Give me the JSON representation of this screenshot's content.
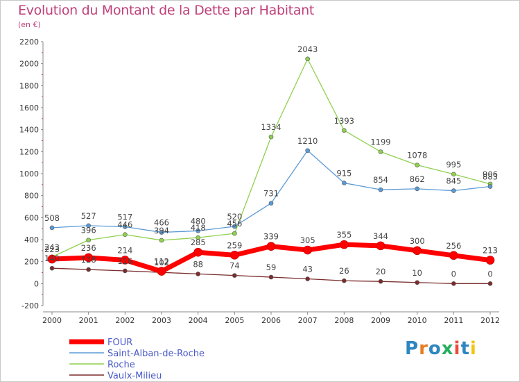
{
  "title": "Evolution du Montant de la Dette par Habitant",
  "subtitle": "(en €)",
  "logo": {
    "text": "Proxiti",
    "colors": [
      "#2e86c1",
      "#e67e22",
      "#2e86c1",
      "#27ae60",
      "#e74c3c",
      "#2e86c1",
      "#f1c40f"
    ]
  },
  "chart_data": {
    "type": "line",
    "x": [
      "2000",
      "2001",
      "2002",
      "2003",
      "2004",
      "2005",
      "2006",
      "2007",
      "2008",
      "2009",
      "2010",
      "2011",
      "2012"
    ],
    "ylim": [
      -200,
      2200
    ],
    "yticks": [
      "-200",
      "0",
      "200",
      "400",
      "600",
      "800",
      "1000",
      "1200",
      "1400",
      "1600",
      "1800",
      "2000",
      "2200"
    ],
    "grid": false,
    "legend_position": "bottom-left",
    "series": [
      {
        "name": "FOUR",
        "color": "#ff0000",
        "values": [
          223,
          236,
          214,
          112,
          285,
          259,
          339,
          305,
          355,
          344,
          300,
          256,
          213
        ],
        "labels": [
          "223",
          "236",
          "214",
          "112",
          "285",
          "259",
          "339",
          "305",
          "355",
          "344",
          "300",
          "256",
          "213"
        ]
      },
      {
        "name": "Saint-Alban-de-Roche",
        "color": "#5b9bd5",
        "values": [
          508,
          527,
          517,
          466,
          480,
          520,
          731,
          1210,
          915,
          854,
          862,
          845,
          883
        ],
        "labels": [
          "508",
          "527",
          "517",
          "466",
          "480",
          "520",
          "731",
          "1210",
          "915",
          "854",
          "862",
          "845",
          "883"
        ]
      },
      {
        "name": "Roche",
        "color": "#8fd14f",
        "values": [
          243,
          396,
          446,
          394,
          418,
          456,
          1334,
          2043,
          1393,
          1199,
          1078,
          995,
          906
        ],
        "labels": [
          "243",
          "396",
          "446",
          "394",
          "418",
          "456",
          "1334",
          "2043",
          "1393",
          "1199",
          "1078",
          "995",
          "906"
        ]
      },
      {
        "name": "Vaulx-Milieu",
        "color": "#7b2c2c",
        "values": [
          140,
          128,
          116,
          102,
          88,
          74,
          59,
          43,
          26,
          20,
          10,
          0,
          0
        ],
        "labels": [
          "140",
          "128",
          "116",
          "102",
          "88",
          "74",
          "59",
          "43",
          "26",
          "20",
          "10",
          "0",
          "0"
        ]
      }
    ]
  }
}
